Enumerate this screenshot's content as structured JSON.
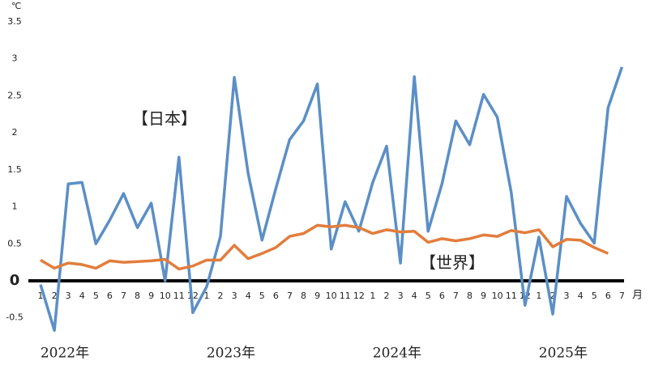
{
  "chart_data": {
    "type": "line",
    "y_unit": "℃",
    "x_unit": "月",
    "categories": [
      "1",
      "2",
      "3",
      "4",
      "5",
      "6",
      "7",
      "8",
      "9",
      "10",
      "11",
      "12",
      "1",
      "2",
      "3",
      "4",
      "5",
      "6",
      "7",
      "8",
      "9",
      "10",
      "11",
      "12",
      "1",
      "2",
      "3",
      "4",
      "5",
      "6",
      "7",
      "8",
      "9",
      "10",
      "11",
      "12",
      "1",
      "2",
      "3",
      "4",
      "5",
      "6",
      "7"
    ],
    "years": [
      "2022年",
      "2023年",
      "2024年",
      "2025年"
    ],
    "annotations": [
      "【日本】",
      "【世界】"
    ],
    "series": [
      {
        "name": "日本",
        "color": "#5b8fc6",
        "values": [
          -0.05,
          -0.67,
          1.31,
          1.33,
          0.5,
          0.82,
          1.18,
          0.72,
          1.05,
          0.0,
          1.67,
          -0.43,
          -0.08,
          0.6,
          2.75,
          1.45,
          0.55,
          1.25,
          1.91,
          2.16,
          2.66,
          0.43,
          1.07,
          0.67,
          1.33,
          1.82,
          0.24,
          2.76,
          0.67,
          1.31,
          2.16,
          1.84,
          2.52,
          2.21,
          1.2,
          -0.33,
          0.59,
          -0.45,
          1.14,
          0.78,
          0.51,
          2.34,
          2.89
        ]
      },
      {
        "name": "世界",
        "color": "#e27d3c",
        "values": [
          0.28,
          0.17,
          0.24,
          0.22,
          0.17,
          0.27,
          0.25,
          0.26,
          0.27,
          0.29,
          0.16,
          0.2,
          0.28,
          0.28,
          0.48,
          0.3,
          0.37,
          0.45,
          0.6,
          0.64,
          0.75,
          0.73,
          0.75,
          0.72,
          0.64,
          0.69,
          0.66,
          0.67,
          0.52,
          0.57,
          0.54,
          0.57,
          0.62,
          0.6,
          0.68,
          0.65,
          0.69,
          0.46,
          0.56,
          0.55,
          0.45,
          0.37,
          null
        ]
      }
    ],
    "ylim": [
      -0.5,
      3.5
    ],
    "yticks": [
      -0.5,
      0,
      0.5,
      1,
      1.5,
      2,
      2.5,
      3,
      3.5
    ]
  }
}
